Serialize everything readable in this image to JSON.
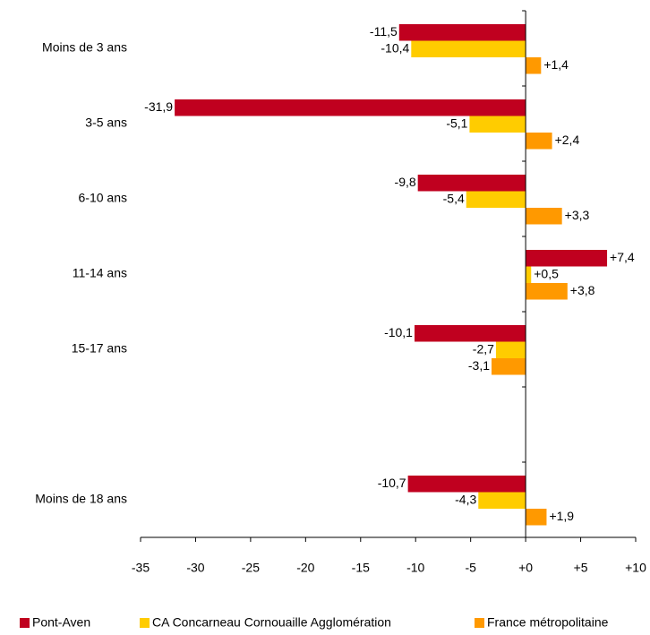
{
  "chart_data": {
    "type": "hbar",
    "categories": [
      "Moins de 3 ans",
      "3-5 ans",
      "6-10 ans",
      "11-14 ans",
      "15-17 ans",
      null,
      "Moins de 18 ans"
    ],
    "series": [
      {
        "name": "Pont-Aven",
        "color": "#c0001f",
        "values": [
          -11.5,
          -31.9,
          -9.8,
          7.4,
          -10.1,
          null,
          -10.7
        ],
        "value_labels": [
          "-11,5",
          "-31,9",
          "-9,8",
          "+7,4",
          "-10,1",
          null,
          "-10,7"
        ]
      },
      {
        "name": "CA Concarneau Cornouaille Agglomération",
        "color": "#ffcc00",
        "values": [
          -10.4,
          -5.1,
          -5.4,
          0.5,
          -2.7,
          null,
          -4.3
        ],
        "value_labels": [
          "-10,4",
          "-5,1",
          "-5,4",
          "+0,5",
          "-2,7",
          null,
          "-4,3"
        ]
      },
      {
        "name": "France métropolitaine",
        "color": "#ff9900",
        "values": [
          1.4,
          2.4,
          3.3,
          3.8,
          -3.1,
          null,
          1.9
        ],
        "value_labels": [
          "+1,4",
          "+2,4",
          "+3,3",
          "+3,8",
          "-3,1",
          null,
          "+1,9"
        ]
      }
    ],
    "xlim": [
      -35,
      10
    ],
    "xticks": [
      -35,
      -30,
      -25,
      -20,
      -15,
      -10,
      -5,
      {
        "value": 0,
        "label": "+0"
      },
      {
        "value": 5,
        "label": "+5"
      },
      {
        "value": 10,
        "label": "+10"
      }
    ],
    "legend": "bottom"
  }
}
